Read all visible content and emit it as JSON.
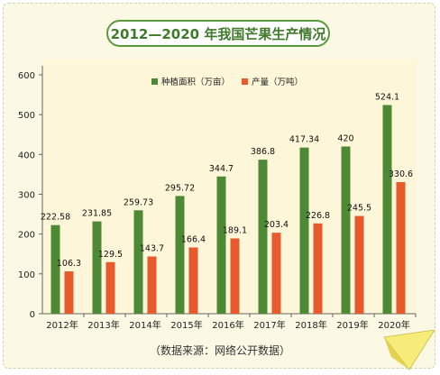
{
  "title": "2012—2020 年我国芒果生产情况",
  "source": "（数据来源：网络公开数据）",
  "colors": {
    "area": "#4e8a35",
    "production": "#e8592b",
    "title_border": "#5b9a3c",
    "background": "#fbf8e3"
  },
  "chart_data": {
    "type": "bar",
    "title": "2012—2020 年我国芒果生产情况",
    "categories": [
      "2012年",
      "2013年",
      "2014年",
      "2015年",
      "2016年",
      "2017年",
      "2018年",
      "2019年",
      "2020年"
    ],
    "series": [
      {
        "name": "种植面积（万亩）",
        "color": "#4e8a35",
        "values": [
          222.58,
          231.85,
          259.73,
          295.72,
          344.7,
          386.8,
          417.34,
          420,
          524.1
        ],
        "labels": [
          "222.58",
          "231.85",
          "259.73",
          "295.72",
          "344.7",
          "386.8",
          "417.34",
          "420",
          "524.1"
        ]
      },
      {
        "name": "产量（万吨）",
        "color": "#e8592b",
        "values": [
          106.3,
          129.5,
          143.7,
          166.4,
          189.1,
          203.4,
          226.8,
          245.5,
          330.6
        ],
        "labels": [
          "106.3",
          "129.5",
          "143.7",
          "166.4",
          "189.1",
          "203.4",
          "226.8",
          "245.5",
          "330.6"
        ]
      }
    ],
    "ylim": [
      0,
      600
    ],
    "yticks": [
      0,
      100,
      200,
      300,
      400,
      500,
      600
    ],
    "xlabel": "",
    "ylabel": "",
    "grid": false,
    "legend": "top-center"
  }
}
